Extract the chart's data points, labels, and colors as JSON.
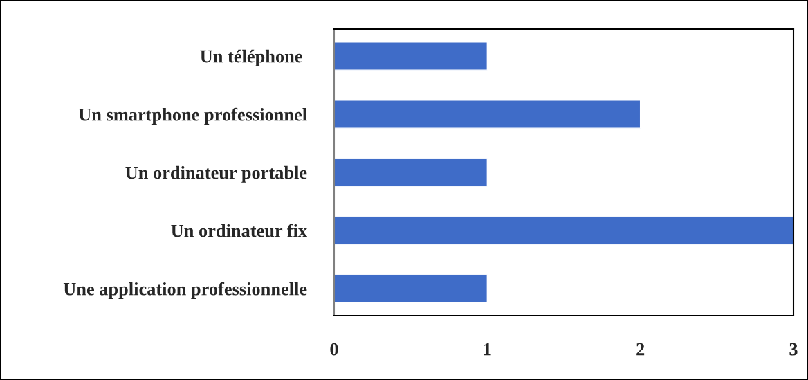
{
  "chart_data": {
    "type": "bar",
    "orientation": "horizontal",
    "categories": [
      "Un téléphone ",
      "Un smartphone professionnel",
      "Un ordinateur portable",
      "Un ordinateur fix",
      "Une application professionnelle"
    ],
    "values": [
      1,
      2,
      1,
      3,
      1
    ],
    "color": "#3f6cc8",
    "xlim": [
      0,
      3
    ],
    "xticks": [
      0,
      1,
      2,
      3
    ],
    "grid": false
  }
}
